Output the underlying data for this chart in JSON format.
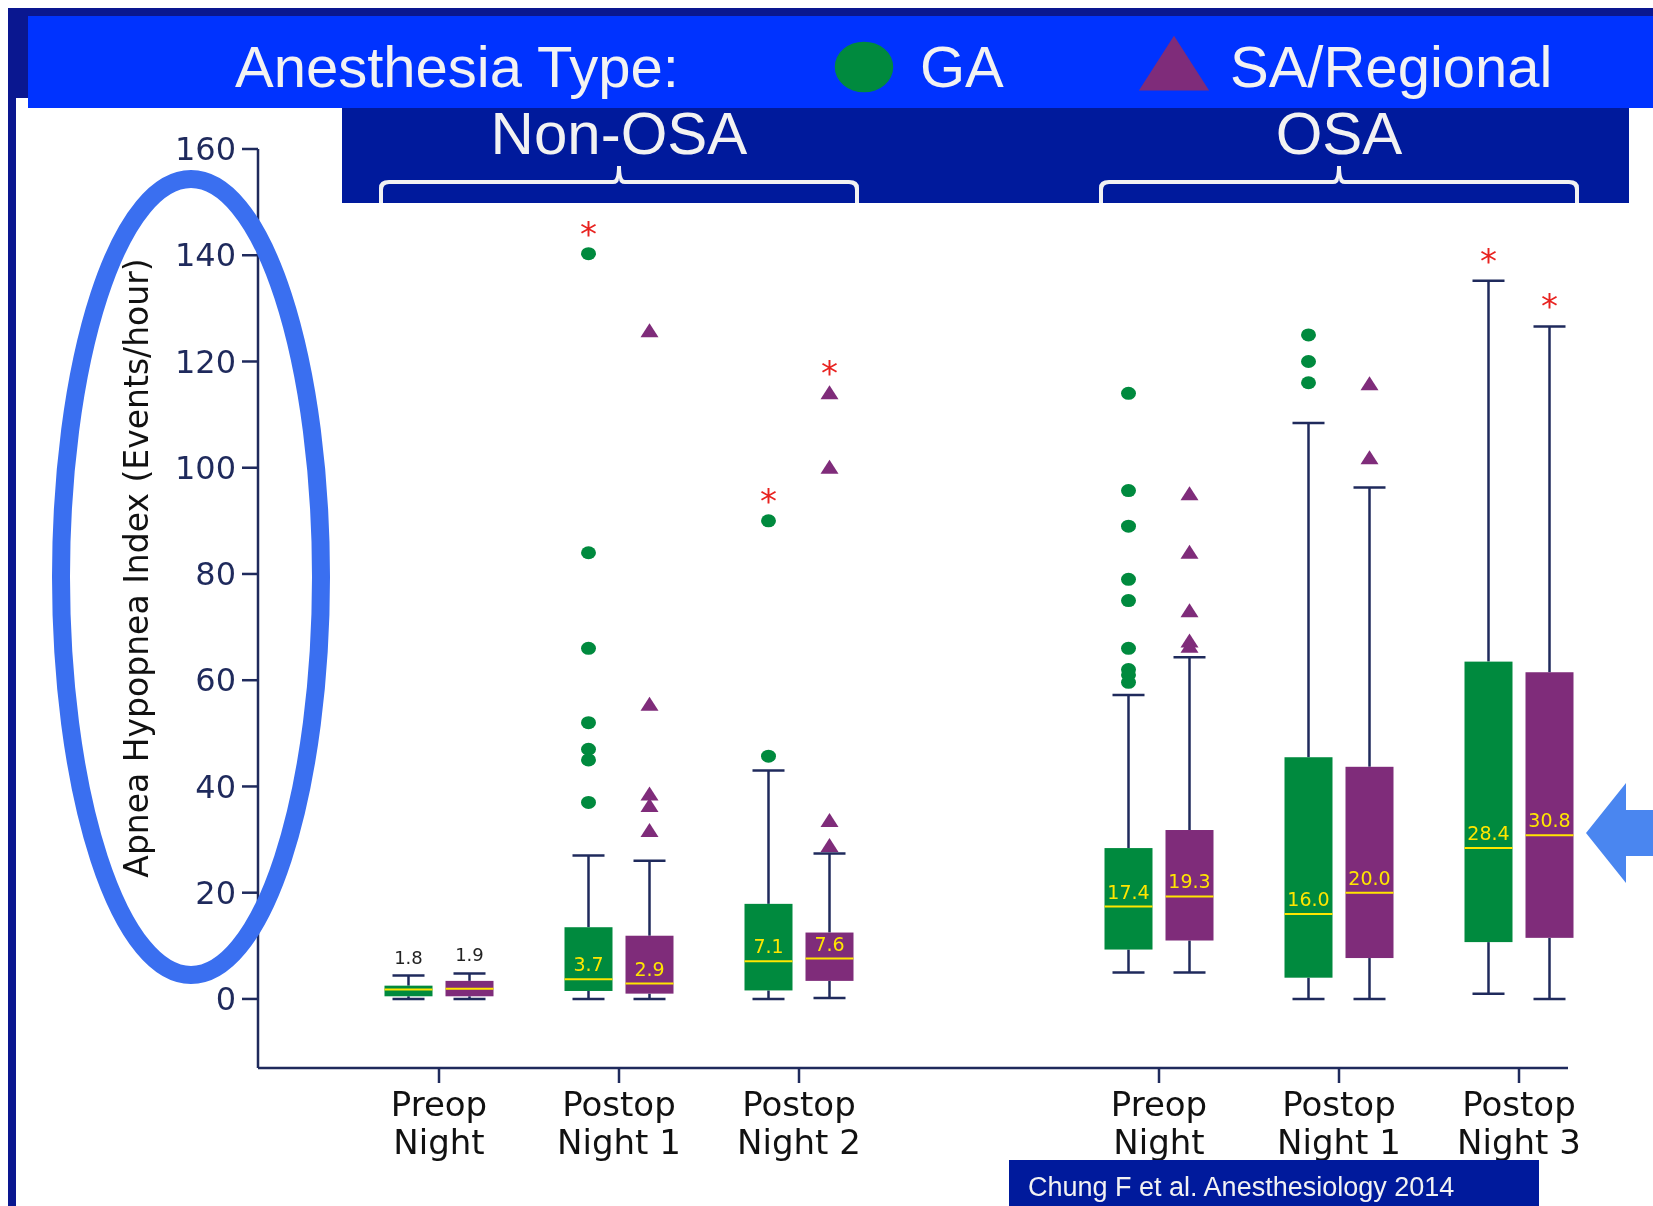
{
  "chart_data": {
    "type": "box",
    "ylabel": "Apnea Hypopnea Index (Events/hour)",
    "legend_title": "Anesthesia Type:",
    "legend": "top",
    "categories": [
      "Preop Night",
      "Postop Night 1",
      "Postop Night 2",
      null,
      "Preop Night",
      "Postop Night 1",
      "Postop Night 3"
    ],
    "ylim": [
      -13,
      160
    ],
    "yticks": [
      0,
      20,
      40,
      60,
      80,
      100,
      120,
      140,
      160
    ],
    "grid": false,
    "series": [
      {
        "name": "GA",
        "color": "#008a3e",
        "marker": "circle",
        "value_labels": [
          "1.8",
          "3.7",
          "7.1",
          null,
          "17.4",
          "16.0",
          "28.4"
        ],
        "boxes": [
          {
            "low": 0,
            "q1": 0.5,
            "median": 1.8,
            "q3": 2.5,
            "high": 4.4
          },
          {
            "low": 0,
            "q1": 1.5,
            "median": 3.7,
            "q3": 13.5,
            "high": 27,
            "outliers": [
              140.3,
              84,
              66,
              52,
              47,
              45,
              37
            ]
          },
          {
            "low": 0,
            "q1": 1.6,
            "median": 7.1,
            "q3": 17.9,
            "high": 43,
            "outliers": [
              90,
              45.7
            ]
          },
          null,
          {
            "low": 5,
            "q1": 9.3,
            "median": 17.4,
            "q3": 28.4,
            "high": 57.2,
            "outliers": [
              114,
              95.7,
              89,
              79,
              75,
              66,
              62,
              61,
              59.6
            ]
          },
          {
            "low": 0,
            "q1": 4,
            "median": 16,
            "q3": 45.5,
            "high": 108.4,
            "outliers": [
              125,
              120,
              116
            ]
          },
          {
            "low": 1,
            "q1": 10.7,
            "median": 28.4,
            "q3": 63.5,
            "high": 135.2
          }
        ]
      },
      {
        "name": "SA/Regional",
        "color": "#7f2c7a",
        "marker": "triangle",
        "value_labels": [
          "1.9",
          "2.9",
          "7.6",
          null,
          "19.3",
          "20.0",
          "30.8"
        ],
        "boxes": [
          {
            "low": 0,
            "q1": 0.5,
            "median": 1.9,
            "q3": 3.4,
            "high": 4.8
          },
          {
            "low": 0,
            "q1": 1,
            "median": 2.9,
            "q3": 11.9,
            "high": 26,
            "outliers": [
              125.7,
              55.4,
              38.5,
              36.3,
              31.6
            ]
          },
          {
            "low": 0.2,
            "q1": 3.4,
            "median": 7.6,
            "q3": 12.5,
            "high": 27.4,
            "outliers": [
              114,
              100,
              33.5,
              28.8
            ]
          },
          null,
          {
            "low": 5,
            "q1": 11,
            "median": 19.3,
            "q3": 31.8,
            "high": 64.3,
            "outliers": [
              95,
              84,
              73,
              67.3,
              66.3
            ]
          },
          {
            "low": 0,
            "q1": 7.7,
            "median": 20,
            "q3": 43.7,
            "high": 96.3,
            "outliers": [
              115.7,
              101.8
            ]
          },
          {
            "low": 0,
            "q1": 11.5,
            "median": 30.8,
            "q3": 61.5,
            "high": 126.6
          }
        ]
      }
    ],
    "annotations": [
      "Non-OSA",
      "OSA",
      "*",
      "*",
      "*",
      "*",
      "*",
      "Chung F et al. Anesthesiology 2014"
    ]
  }
}
